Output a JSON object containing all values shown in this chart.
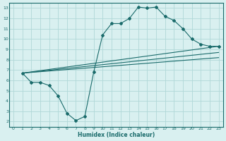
{
  "line1_x": [
    1,
    2,
    3,
    4,
    5,
    6,
    7,
    8,
    9,
    10,
    11,
    12,
    13,
    14,
    15,
    16,
    17,
    18,
    19,
    20,
    21,
    22,
    23
  ],
  "line1_y": [
    6.7,
    5.8,
    5.8,
    5.5,
    4.5,
    2.8,
    2.1,
    2.5,
    6.8,
    10.4,
    11.5,
    11.5,
    12.0,
    13.1,
    13.0,
    13.1,
    12.2,
    11.8,
    11.0,
    10.0,
    9.5,
    9.3,
    9.3
  ],
  "line2_x": [
    1,
    23
  ],
  "line2_y": [
    6.7,
    9.3
  ],
  "line3_x": [
    1,
    23
  ],
  "line3_y": [
    6.7,
    8.7
  ],
  "line4_x": [
    1,
    23
  ],
  "line4_y": [
    6.7,
    8.2
  ],
  "color": "#1a6b6b",
  "bg_color": "#d9f0f0",
  "grid_color": "#b0d8d8",
  "xlabel": "Humidex (Indice chaleur)",
  "xlim": [
    -0.5,
    23.5
  ],
  "ylim": [
    1.5,
    13.5
  ],
  "xticks": [
    0,
    1,
    2,
    3,
    4,
    5,
    6,
    7,
    8,
    9,
    10,
    11,
    12,
    13,
    14,
    15,
    16,
    17,
    18,
    19,
    20,
    21,
    22,
    23
  ],
  "yticks": [
    2,
    3,
    4,
    5,
    6,
    7,
    8,
    9,
    10,
    11,
    12,
    13
  ]
}
